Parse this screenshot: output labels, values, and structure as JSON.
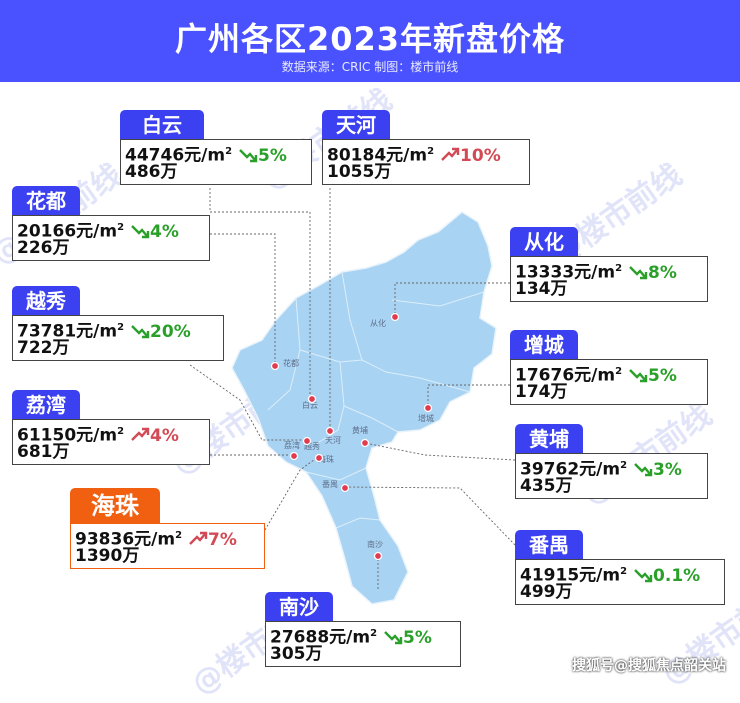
{
  "header": {
    "title": "广州各区2023年新盘价格",
    "source": "数据来源：CRIC 制图：楼市前线"
  },
  "watermark": "@楼市前线",
  "map_labels": [
    "从化",
    "花都",
    "白云",
    "天河",
    "黄埔",
    "增城",
    "荔湾",
    "越秀",
    "海珠",
    "番禺",
    "南沙"
  ],
  "colors": {
    "header_bg": "#4a52ff",
    "tag_bg": "#3b40f0",
    "highlight": "#f06010",
    "map_fill": "#a9d3f2",
    "pin": "#e23a4f",
    "trend_down": "#2aa02a",
    "trend_up": "#d24a55"
  },
  "unit": "元/m²",
  "districts": {
    "baiyun": {
      "name": "白云",
      "price": "44746元/m",
      "total": "486万",
      "change": "5%",
      "trend": "down",
      "icon": "arrow-down-icon"
    },
    "tianhe": {
      "name": "天河",
      "price": "80184元/m",
      "total": "1055万",
      "change": "10%",
      "trend": "up",
      "icon": "arrow-up-icon"
    },
    "huadu": {
      "name": "花都",
      "price": "20166元/m",
      "total": "226万",
      "change": "4%",
      "trend": "down",
      "icon": "arrow-down-icon"
    },
    "conghua": {
      "name": "从化",
      "price": "13333元/m",
      "total": "134万",
      "change": "8%",
      "trend": "down",
      "icon": "arrow-down-icon"
    },
    "yuexiu": {
      "name": "越秀",
      "price": "73781元/m",
      "total": "722万",
      "change": "20%",
      "trend": "down",
      "icon": "arrow-down-icon"
    },
    "zengcheng": {
      "name": "增城",
      "price": "17676元/m",
      "total": "174万",
      "change": "5%",
      "trend": "down",
      "icon": "arrow-down-icon"
    },
    "liwan": {
      "name": "荔湾",
      "price": "61150元/m",
      "total": "681万",
      "change": "4%",
      "trend": "up",
      "icon": "arrow-up-icon"
    },
    "huangpu": {
      "name": "黄埔",
      "price": "39762元/m",
      "total": "435万",
      "change": "3%",
      "trend": "down",
      "icon": "arrow-down-icon"
    },
    "haizhu": {
      "name": "海珠",
      "price": "93836元/m",
      "total": "1390万",
      "change": "7%",
      "trend": "up",
      "icon": "arrow-up-icon",
      "highlight": true
    },
    "panyu": {
      "name": "番禺",
      "price": "41915元/m",
      "total": "499万",
      "change": "0.1%",
      "trend": "down",
      "icon": "arrow-down-icon"
    },
    "nansha": {
      "name": "南沙",
      "price": "27688元/m",
      "total": "305万",
      "change": "5%",
      "trend": "down",
      "icon": "arrow-down-icon"
    }
  },
  "footer": "搜狐号@搜狐焦点韶关站"
}
